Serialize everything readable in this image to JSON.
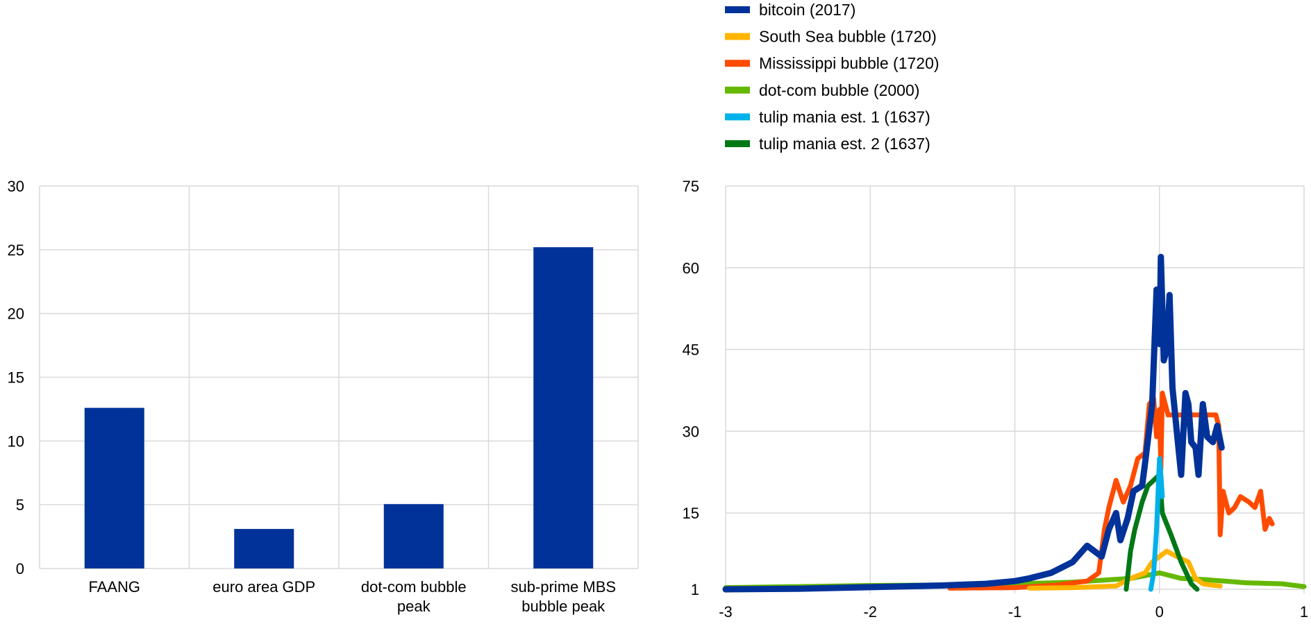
{
  "chart_data": [
    {
      "type": "bar",
      "categories": [
        [
          "FAANG"
        ],
        [
          "euro area GDP"
        ],
        [
          "dot-com bubble",
          "peak"
        ],
        [
          "sub-prime MBS",
          "bubble peak"
        ]
      ],
      "values": [
        12.6,
        3.1,
        5.05,
        25.2
      ],
      "ylim": [
        0,
        30
      ],
      "yticks": [
        "0",
        "5",
        "10",
        "15",
        "20",
        "25",
        "30"
      ],
      "grid": true,
      "color": "#003299"
    },
    {
      "type": "line",
      "xlim": [
        -3,
        1
      ],
      "ylim": [
        1,
        75
      ],
      "xticks": [
        "-3",
        "-2",
        "-1",
        "0",
        "1"
      ],
      "yticks": [
        "1",
        "15",
        "30",
        "45",
        "60",
        "75"
      ],
      "grid": true,
      "legend_position": "top",
      "series": [
        {
          "name": "bitcoin (2017)",
          "color": "#003299",
          "points": [
            [
              -3,
              1
            ],
            [
              -2.5,
              1.1
            ],
            [
              -2,
              1.4
            ],
            [
              -1.5,
              1.7
            ],
            [
              -1.2,
              2
            ],
            [
              -1,
              2.5
            ],
            [
              -0.9,
              3
            ],
            [
              -0.75,
              4
            ],
            [
              -0.6,
              6
            ],
            [
              -0.5,
              9
            ],
            [
              -0.45,
              8
            ],
            [
              -0.4,
              7
            ],
            [
              -0.35,
              12
            ],
            [
              -0.3,
              15
            ],
            [
              -0.27,
              10
            ],
            [
              -0.22,
              14
            ],
            [
              -0.18,
              19
            ],
            [
              -0.12,
              20
            ],
            [
              -0.1,
              24
            ],
            [
              -0.05,
              35
            ],
            [
              -0.02,
              56
            ],
            [
              0,
              46
            ],
            [
              0.01,
              62
            ],
            [
              0.03,
              43
            ],
            [
              0.05,
              45
            ],
            [
              0.07,
              55
            ],
            [
              0.09,
              38
            ],
            [
              0.12,
              30
            ],
            [
              0.15,
              22
            ],
            [
              0.18,
              37
            ],
            [
              0.2,
              35
            ],
            [
              0.22,
              28
            ],
            [
              0.25,
              27
            ],
            [
              0.27,
              22
            ],
            [
              0.3,
              35
            ],
            [
              0.33,
              29
            ],
            [
              0.37,
              28
            ],
            [
              0.4,
              31
            ],
            [
              0.43,
              27
            ]
          ]
        },
        {
          "name": "South Sea bubble (1720)",
          "color": "#FFB400",
          "points": [
            [
              -0.9,
              1.2
            ],
            [
              -0.6,
              1.3
            ],
            [
              -0.3,
              1.6
            ],
            [
              -0.2,
              3
            ],
            [
              -0.1,
              4
            ],
            [
              -0.05,
              6
            ],
            [
              0,
              7
            ],
            [
              0.05,
              8
            ],
            [
              0.12,
              7
            ],
            [
              0.2,
              6
            ],
            [
              0.25,
              3
            ],
            [
              0.3,
              2
            ],
            [
              0.35,
              1.8
            ],
            [
              0.42,
              1.6
            ]
          ]
        },
        {
          "name": "Mississippi bubble (1720)",
          "color": "#FF4B00",
          "points": [
            [
              -1.45,
              1.2
            ],
            [
              -1,
              1.3
            ],
            [
              -0.7,
              1.8
            ],
            [
              -0.5,
              2.5
            ],
            [
              -0.42,
              4
            ],
            [
              -0.38,
              12
            ],
            [
              -0.35,
              16
            ],
            [
              -0.3,
              21
            ],
            [
              -0.25,
              17
            ],
            [
              -0.2,
              20
            ],
            [
              -0.15,
              25
            ],
            [
              -0.1,
              26
            ],
            [
              -0.07,
              35
            ],
            [
              -0.04,
              36
            ],
            [
              -0.02,
              29
            ],
            [
              0,
              34
            ],
            [
              0.01,
              23
            ],
            [
              0.02,
              37
            ],
            [
              0.06,
              33
            ],
            [
              0.1,
              33
            ],
            [
              0.39,
              33
            ],
            [
              0.41,
              31
            ],
            [
              0.42,
              11
            ],
            [
              0.44,
              19
            ],
            [
              0.48,
              15
            ],
            [
              0.52,
              16
            ],
            [
              0.56,
              18
            ],
            [
              0.62,
              17
            ],
            [
              0.66,
              16
            ],
            [
              0.7,
              19
            ],
            [
              0.73,
              12
            ],
            [
              0.76,
              14
            ],
            [
              0.78,
              13
            ]
          ]
        },
        {
          "name": "dot-com bubble (2000)",
          "color": "#65B800",
          "points": [
            [
              -3,
              1.3
            ],
            [
              -2.5,
              1.5
            ],
            [
              -2,
              1.7
            ],
            [
              -1.5,
              1.8
            ],
            [
              -1,
              2
            ],
            [
              -0.6,
              2.3
            ],
            [
              -0.2,
              3
            ],
            [
              0,
              4
            ],
            [
              0.15,
              3
            ],
            [
              0.3,
              2.8
            ],
            [
              0.6,
              2.2
            ],
            [
              0.85,
              2
            ],
            [
              1,
              1.5
            ]
          ]
        },
        {
          "name": "tulip mania est. 1 (1637)",
          "color": "#00B1EA",
          "points": [
            [
              -0.06,
              1
            ],
            [
              -0.04,
              4
            ],
            [
              -0.02,
              12
            ],
            [
              0,
              25
            ],
            [
              0.01,
              22
            ],
            [
              0.02,
              18
            ]
          ]
        },
        {
          "name": "tulip mania est. 2 (1637)",
          "color": "#007816",
          "points": [
            [
              -0.23,
              1
            ],
            [
              -0.2,
              8
            ],
            [
              -0.17,
              12
            ],
            [
              -0.12,
              17
            ],
            [
              -0.08,
              20
            ],
            [
              0,
              22
            ],
            [
              0.02,
              15
            ],
            [
              0.08,
              11
            ],
            [
              0.15,
              6
            ],
            [
              0.22,
              2
            ],
            [
              0.26,
              1
            ]
          ]
        }
      ]
    }
  ]
}
